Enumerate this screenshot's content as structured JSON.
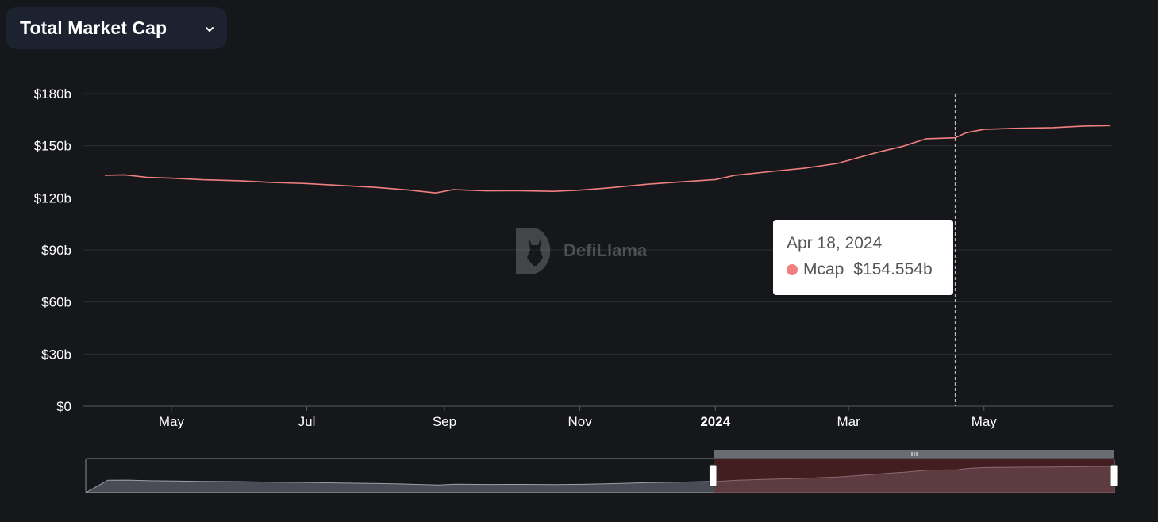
{
  "header": {
    "metric_label": "Total Market Cap"
  },
  "icons": {
    "dropdown": "chevron-down-icon",
    "logo": "defillama-logo-icon"
  },
  "watermark": {
    "text": "DefiLlama"
  },
  "tooltip": {
    "date": "Apr 18, 2024",
    "series": "Mcap",
    "value": "$154.554b"
  },
  "colors": {
    "line": "#f08080",
    "background": "#16171a",
    "brush_fill": "#5a2f2f",
    "overview_fill": "#4a4c55"
  },
  "chart_data": {
    "type": "line",
    "title": "Total Market Cap",
    "xlabel": "",
    "ylabel": "",
    "ylim": [
      0,
      180
    ],
    "y_unit": "b USD",
    "y_ticks": [
      "$0",
      "$30b",
      "$60b",
      "$90b",
      "$120b",
      "$150b",
      "$180b"
    ],
    "x_ticks": [
      "May",
      "Jul",
      "Sep",
      "Nov",
      "2024",
      "Mar",
      "May"
    ],
    "grid": true,
    "series": [
      {
        "name": "Mcap",
        "points": [
          [
            "2023-04-01",
            133.0
          ],
          [
            "2023-04-10",
            133.2
          ],
          [
            "2023-04-20",
            131.8
          ],
          [
            "2023-05-01",
            131.3
          ],
          [
            "2023-05-15",
            130.4
          ],
          [
            "2023-06-01",
            129.8
          ],
          [
            "2023-06-15",
            128.9
          ],
          [
            "2023-07-01",
            128.2
          ],
          [
            "2023-07-15",
            127.2
          ],
          [
            "2023-08-01",
            126.0
          ],
          [
            "2023-08-15",
            124.6
          ],
          [
            "2023-08-28",
            122.8
          ],
          [
            "2023-09-05",
            124.7
          ],
          [
            "2023-09-20",
            124.0
          ],
          [
            "2023-10-05",
            124.1
          ],
          [
            "2023-10-20",
            123.7
          ],
          [
            "2023-11-01",
            124.4
          ],
          [
            "2023-11-15",
            125.8
          ],
          [
            "2023-12-01",
            127.8
          ],
          [
            "2023-12-15",
            129.0
          ],
          [
            "2024-01-01",
            130.5
          ],
          [
            "2024-01-10",
            133.0
          ],
          [
            "2024-01-25",
            135.0
          ],
          [
            "2024-02-10",
            137.0
          ],
          [
            "2024-02-25",
            139.8
          ],
          [
            "2024-03-05",
            143.0
          ],
          [
            "2024-03-15",
            146.5
          ],
          [
            "2024-03-25",
            149.5
          ],
          [
            "2024-04-05",
            154.0
          ],
          [
            "2024-04-18",
            154.554
          ],
          [
            "2024-04-23",
            157.5
          ],
          [
            "2024-05-01",
            159.4
          ],
          [
            "2024-05-15",
            160.0
          ],
          [
            "2024-06-01",
            160.4
          ],
          [
            "2024-06-15",
            161.3
          ],
          [
            "2024-06-27",
            161.6
          ]
        ]
      }
    ]
  }
}
